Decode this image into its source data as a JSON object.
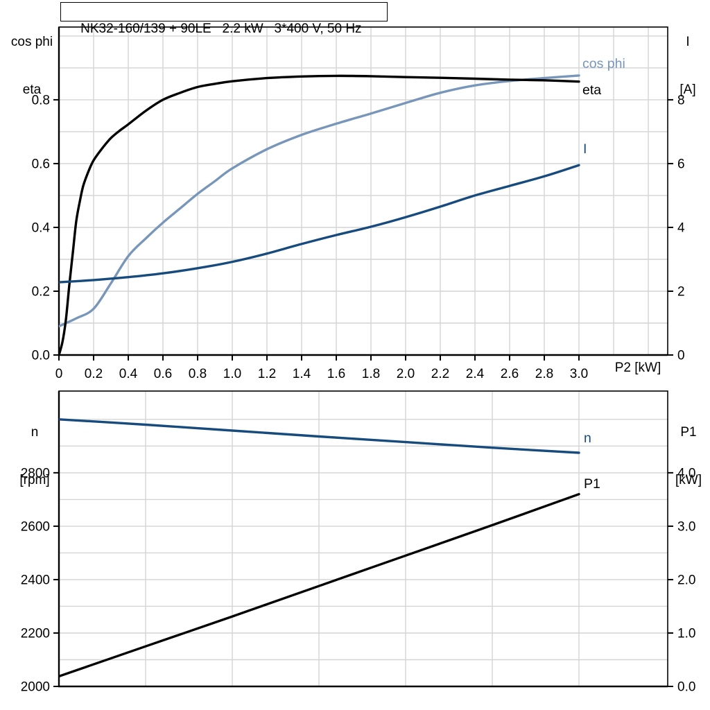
{
  "colors": {
    "grid": "#d4d4d4",
    "axis": "#000000",
    "dark_blue": "#174a7d",
    "light_blue": "#7896b9",
    "black": "#000000"
  },
  "chart_data": [
    {
      "name": "motor-curves-upper",
      "type": "line",
      "title": "NK32-160/139 + 90LE   2.2 kW   3*400 V, 50 Hz",
      "x_axis": {
        "label": "P2 [kW]",
        "min": 0,
        "max": 3.512,
        "grid_step": 0.2,
        "ticks": {
          "values": [
            0,
            0.2,
            0.4,
            0.6,
            0.8,
            1.0,
            1.2,
            1.4,
            1.6,
            1.8,
            2.0,
            2.2,
            2.4,
            2.6,
            2.8,
            3.0
          ],
          "labels": [
            "0",
            "0.2",
            "0.4",
            "0.6",
            "0.8",
            "1.0",
            "1.2",
            "1.4",
            "1.6",
            "1.8",
            "2.0",
            "2.2",
            "2.4",
            "2.6",
            "2.8",
            "3.0"
          ]
        }
      },
      "left_axis": {
        "line1": "cos phi",
        "line2": "eta",
        "min": 0,
        "max": 1.028,
        "grid_step": 0.1,
        "ticks": {
          "values": [
            0,
            0.2,
            0.4,
            0.6,
            0.8
          ],
          "labels": [
            "0.0",
            "0.2",
            "0.4",
            "0.6",
            "0.8"
          ]
        }
      },
      "right_axis": {
        "line1": "I",
        "line2": "[A]",
        "min": 0,
        "max": 10.28,
        "ticks": {
          "values": [
            0,
            2,
            4,
            6,
            8
          ],
          "labels": [
            "0",
            "2",
            "4",
            "6",
            "8"
          ]
        }
      },
      "series": [
        {
          "name": "cos phi",
          "axis": "left",
          "color": "#7896b9",
          "points": [
            [
              0,
              0.09
            ],
            [
              0.1,
              0.115
            ],
            [
              0.2,
              0.145
            ],
            [
              0.3,
              0.225
            ],
            [
              0.4,
              0.31
            ],
            [
              0.5,
              0.365
            ],
            [
              0.6,
              0.415
            ],
            [
              0.7,
              0.46
            ],
            [
              0.8,
              0.505
            ],
            [
              0.9,
              0.545
            ],
            [
              1.0,
              0.585
            ],
            [
              1.2,
              0.645
            ],
            [
              1.4,
              0.69
            ],
            [
              1.6,
              0.725
            ],
            [
              1.8,
              0.757
            ],
            [
              2.0,
              0.79
            ],
            [
              2.2,
              0.822
            ],
            [
              2.4,
              0.845
            ],
            [
              2.6,
              0.859
            ],
            [
              2.8,
              0.868
            ],
            [
              3.0,
              0.876
            ]
          ]
        },
        {
          "name": "eta",
          "axis": "left",
          "color": "#000000",
          "points": [
            [
              0,
              0
            ],
            [
              0.02,
              0.04
            ],
            [
              0.04,
              0.11
            ],
            [
              0.06,
              0.22
            ],
            [
              0.08,
              0.32
            ],
            [
              0.1,
              0.42
            ],
            [
              0.12,
              0.48
            ],
            [
              0.14,
              0.53
            ],
            [
              0.17,
              0.575
            ],
            [
              0.2,
              0.61
            ],
            [
              0.25,
              0.648
            ],
            [
              0.3,
              0.68
            ],
            [
              0.35,
              0.703
            ],
            [
              0.4,
              0.723
            ],
            [
              0.5,
              0.765
            ],
            [
              0.6,
              0.8
            ],
            [
              0.7,
              0.822
            ],
            [
              0.8,
              0.84
            ],
            [
              0.9,
              0.85
            ],
            [
              1.0,
              0.858
            ],
            [
              1.2,
              0.868
            ],
            [
              1.4,
              0.873
            ],
            [
              1.6,
              0.875
            ],
            [
              1.8,
              0.874
            ],
            [
              2.0,
              0.871
            ],
            [
              2.2,
              0.869
            ],
            [
              2.4,
              0.866
            ],
            [
              2.6,
              0.863
            ],
            [
              2.8,
              0.861
            ],
            [
              3.0,
              0.857
            ]
          ]
        },
        {
          "name": "I",
          "axis": "right",
          "color": "#174a7d",
          "points": [
            [
              0,
              2.28
            ],
            [
              0.2,
              2.35
            ],
            [
              0.4,
              2.44
            ],
            [
              0.6,
              2.56
            ],
            [
              0.8,
              2.72
            ],
            [
              1.0,
              2.92
            ],
            [
              1.2,
              3.18
            ],
            [
              1.4,
              3.48
            ],
            [
              1.6,
              3.76
            ],
            [
              1.8,
              4.02
            ],
            [
              2.0,
              4.32
            ],
            [
              2.2,
              4.65
            ],
            [
              2.4,
              5.0
            ],
            [
              2.6,
              5.3
            ],
            [
              2.8,
              5.6
            ],
            [
              3.0,
              5.95
            ]
          ]
        }
      ]
    },
    {
      "name": "motor-curves-lower",
      "type": "line",
      "x_axis": {
        "label": "",
        "min": 0,
        "max": 3.512,
        "grid_step": 0.5,
        "ticks": {
          "values": [],
          "labels": []
        }
      },
      "left_axis": {
        "line1": "n",
        "line2": "[rpm]",
        "min": 2000,
        "max": 3106,
        "grid_step": 100,
        "ticks": {
          "values": [
            2000,
            2200,
            2400,
            2600,
            2800
          ],
          "labels": [
            "2000",
            "2200",
            "2400",
            "2600",
            "2800"
          ]
        }
      },
      "right_axis": {
        "line1": "P1",
        "line2": "[kW]",
        "min": 0,
        "max": 5.53,
        "ticks": {
          "values": [
            0,
            1,
            2,
            3,
            4
          ],
          "labels": [
            "0.0",
            "1.0",
            "2.0",
            "3.0",
            "4.0"
          ]
        }
      },
      "series": [
        {
          "name": "n",
          "axis": "left",
          "color": "#174a7d",
          "points": [
            [
              0,
              3000
            ],
            [
              0.5,
              2980
            ],
            [
              1.0,
              2958
            ],
            [
              1.5,
              2936
            ],
            [
              2.0,
              2915
            ],
            [
              2.5,
              2894
            ],
            [
              3.0,
              2875
            ]
          ]
        },
        {
          "name": "P1",
          "axis": "right",
          "color": "#000000",
          "points": [
            [
              0,
              0.19
            ],
            [
              0.5,
              0.75
            ],
            [
              1.0,
              1.31
            ],
            [
              1.5,
              1.88
            ],
            [
              2.0,
              2.45
            ],
            [
              2.5,
              3.02
            ],
            [
              3.0,
              3.6
            ]
          ]
        }
      ]
    }
  ]
}
